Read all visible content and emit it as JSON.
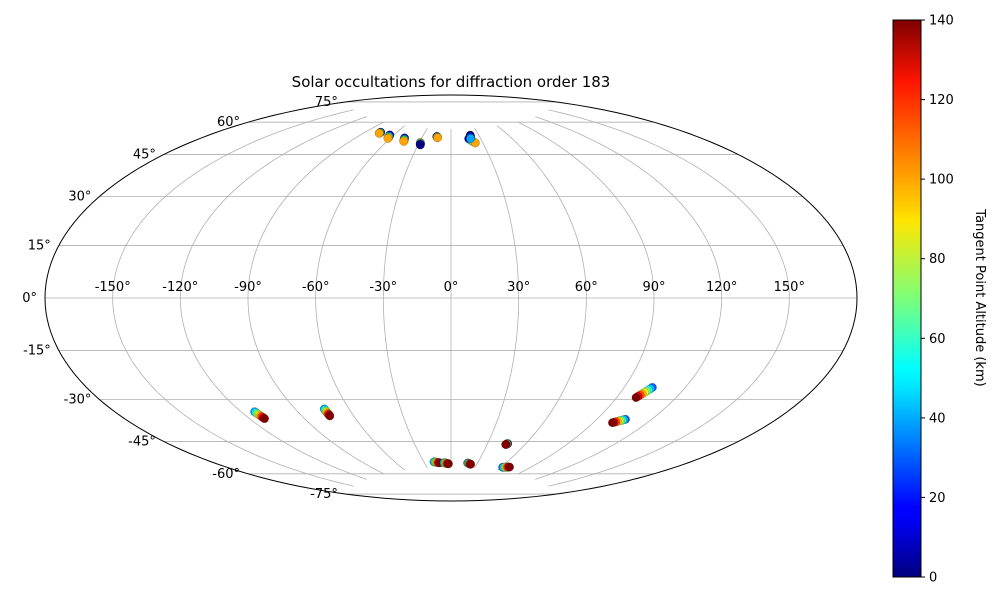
{
  "chart_data": {
    "type": "scatter",
    "projection": "aitoff",
    "title": "Solar occultations for diffraction order 183",
    "x_tick_labels": [
      "-150°",
      "-120°",
      "-90°",
      "-60°",
      "-30°",
      "0°",
      "30°",
      "60°",
      "90°",
      "120°",
      "150°"
    ],
    "x_ticks": [
      -150,
      -120,
      -90,
      -60,
      -30,
      0,
      30,
      60,
      90,
      120,
      150
    ],
    "y_tick_labels": [
      "-75°",
      "-60°",
      "-45°",
      "-30°",
      "-15°",
      "0°",
      "15°",
      "30°",
      "45°",
      "60°",
      "75°"
    ],
    "y_ticks": [
      -75,
      -60,
      -45,
      -30,
      -15,
      0,
      15,
      30,
      45,
      60,
      75
    ],
    "xlim": [
      -180,
      180
    ],
    "ylim": [
      -90,
      90
    ],
    "grid": true,
    "colorbar": {
      "label": "Tangent Point Altitude (km)",
      "colormap": "jet",
      "range": [
        0,
        140
      ],
      "tick_labels": [
        "0",
        "20",
        "40",
        "60",
        "80",
        "100",
        "120",
        "140"
      ],
      "ticks": [
        0,
        20,
        40,
        60,
        80,
        100,
        120,
        140
      ]
    },
    "groups": [
      {
        "lon_start": -76,
        "lat_start": 71.0,
        "lon_end": -76,
        "lat_end": 70.5,
        "alt_start": 0,
        "alt_end": 100
      },
      {
        "lon_start": -64,
        "lat_start": 70.5,
        "lon_end": -62,
        "lat_end": 69.0,
        "alt_start": 0,
        "alt_end": 100
      },
      {
        "lon_start": -47,
        "lat_start": 70.0,
        "lon_end": -45,
        "lat_end": 68.5,
        "alt_start": 0,
        "alt_end": 100
      },
      {
        "lon_start": -29,
        "lat_start": 68.5,
        "lon_end": -28,
        "lat_end": 67.5,
        "alt_start": 100,
        "alt_end": 0
      },
      {
        "lon_start": -15,
        "lat_start": 71.5,
        "lon_end": -14,
        "lat_end": 71.0,
        "alt_start": 0,
        "alt_end": 100
      },
      {
        "lon_start": 18,
        "lat_start": 70.5,
        "lon_end": 23,
        "lat_end": 68.5,
        "alt_start": 0,
        "alt_end": 100
      },
      {
        "lon_start": 21,
        "lat_start": 72.0,
        "lon_end": 20,
        "lat_end": 70.5,
        "alt_start": 0,
        "alt_end": 40
      },
      {
        "lon_start": -113,
        "lat_start": -44.0,
        "lon_end": -112,
        "lat_end": -47.0,
        "alt_start": 40,
        "alt_end": 140
      },
      {
        "lon_start": -74,
        "lat_start": -46.5,
        "lon_end": -74,
        "lat_end": -49.5,
        "alt_start": 40,
        "alt_end": 140
      },
      {
        "lon_start": 104,
        "lat_start": -35.0,
        "lon_end": 100,
        "lat_end": -39.5,
        "alt_start": 30,
        "alt_end": 140
      },
      {
        "lon_start": 106,
        "lat_start": -48.0,
        "lon_end": 101,
        "lat_end": -50.0,
        "alt_start": 30,
        "alt_end": 140
      },
      {
        "lon_start": 46,
        "lat_start": -63.5,
        "lon_end": 45,
        "lat_end": -64.0,
        "alt_start": 10,
        "alt_end": 140
      },
      {
        "lon_start": -19,
        "lat_start": -72.5,
        "lon_end": -13,
        "lat_end": -73.0,
        "alt_start": 40,
        "alt_end": 140
      },
      {
        "lon_start": -8,
        "lat_start": -73.0,
        "lon_end": -3,
        "lat_end": -73.5,
        "alt_start": 40,
        "alt_end": 140
      },
      {
        "lon_start": 19,
        "lat_start": -73.0,
        "lon_end": 23,
        "lat_end": -73.5,
        "alt_start": 30,
        "alt_end": 140
      },
      {
        "lon_start": 62,
        "lat_start": -73.5,
        "lon_end": 69,
        "lat_end": -73.0,
        "alt_start": 30,
        "alt_end": 140
      }
    ]
  }
}
